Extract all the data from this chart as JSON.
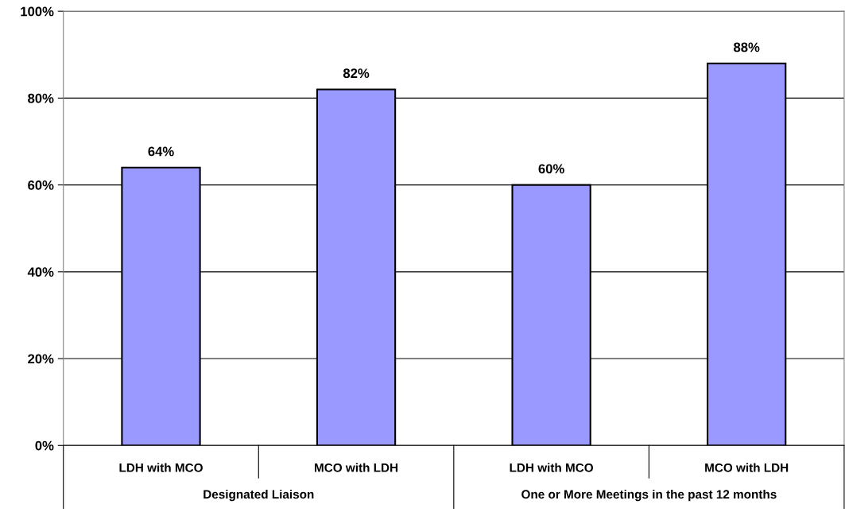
{
  "chart_data": {
    "type": "bar",
    "categories": [
      "LDH with MCO",
      "MCO with LDH",
      "LDH with MCO",
      "MCO with LDH"
    ],
    "values": [
      64,
      82,
      60,
      88
    ],
    "color": "#9999ff",
    "value_labels": [
      "64%",
      "82%",
      "60%",
      "88%"
    ],
    "ylim": [
      0,
      100
    ],
    "yticks": [
      {
        "value": 0,
        "label": "0%"
      },
      {
        "value": 20,
        "label": "20%"
      },
      {
        "value": 40,
        "label": "40%"
      },
      {
        "value": 60,
        "label": "60%"
      },
      {
        "value": 80,
        "label": "80%"
      },
      {
        "value": 100,
        "label": "100%"
      }
    ],
    "grid": "y",
    "annotations": [
      "Designated Liaison",
      "One or More Meetings in the past 12 months"
    ]
  }
}
